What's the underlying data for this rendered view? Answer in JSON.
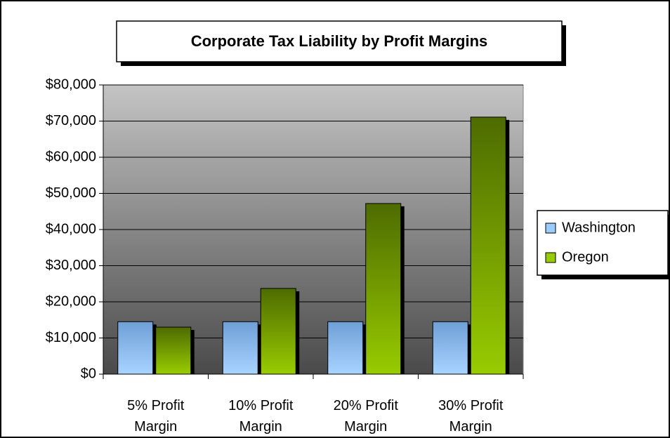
{
  "chart_data": {
    "type": "bar",
    "title": "Corporate Tax Liability by Profit Margins",
    "categories": [
      "5% Profit Margin",
      "10% Profit Margin",
      "20% Profit Margin",
      "30% Profit Margin"
    ],
    "series": [
      {
        "name": "Washington",
        "color": "#99ccff",
        "values": [
          14500,
          14500,
          14500,
          14500
        ]
      },
      {
        "name": "Oregon",
        "color": "#99cc00",
        "values": [
          13000,
          23700,
          47200,
          71100
        ]
      }
    ],
    "ylim": [
      0,
      80000
    ],
    "yticks": [
      {
        "value": 0,
        "label": "$0"
      },
      {
        "value": 10000,
        "label": "$10,000"
      },
      {
        "value": 20000,
        "label": "$20,000"
      },
      {
        "value": 30000,
        "label": "$30,000"
      },
      {
        "value": 40000,
        "label": "$40,000"
      },
      {
        "value": 50000,
        "label": "$50,000"
      },
      {
        "value": 60000,
        "label": "$60,000"
      },
      {
        "value": 70000,
        "label": "$70,000"
      },
      {
        "value": 80000,
        "label": "$80,000"
      }
    ],
    "grid": true,
    "legend": "right"
  }
}
